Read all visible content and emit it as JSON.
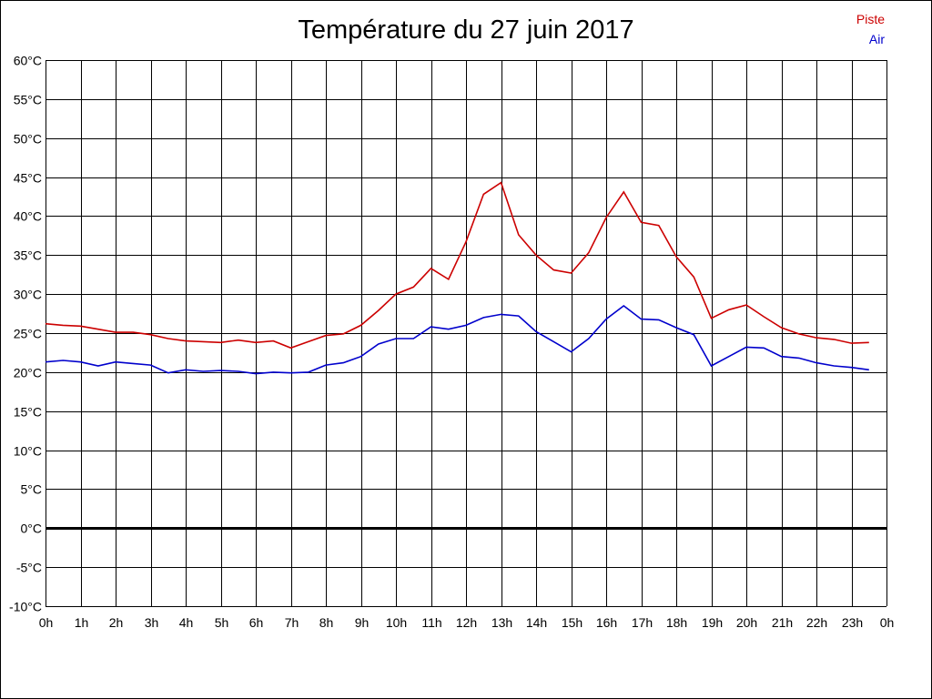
{
  "chart_data": {
    "type": "line",
    "title": "Température du 27 juin 2017",
    "xlabel": "",
    "ylabel": "",
    "ylim": [
      -10,
      60
    ],
    "xlim": [
      0,
      24
    ],
    "grid": true,
    "legend_position": "top-right",
    "y_ticks": [
      -10,
      -5,
      0,
      5,
      10,
      15,
      20,
      25,
      30,
      35,
      40,
      45,
      50,
      55,
      60
    ],
    "y_tick_labels": [
      "-10°C",
      "-5°C",
      "0°C",
      "5°C",
      "10°C",
      "15°C",
      "20°C",
      "25°C",
      "30°C",
      "35°C",
      "40°C",
      "45°C",
      "50°C",
      "55°C",
      "60°C"
    ],
    "x_tick_labels": [
      "0h",
      "1h",
      "2h",
      "3h",
      "4h",
      "5h",
      "6h",
      "7h",
      "8h",
      "9h",
      "10h",
      "11h",
      "12h",
      "13h",
      "14h",
      "15h",
      "16h",
      "17h",
      "18h",
      "19h",
      "20h",
      "21h",
      "22h",
      "23h",
      "0h"
    ],
    "series": [
      {
        "name": "Piste",
        "color": "#cc0000",
        "x": [
          0,
          0.5,
          1,
          1.5,
          2,
          2.5,
          3,
          3.5,
          4,
          4.5,
          5,
          5.5,
          6,
          6.5,
          7,
          7.5,
          8,
          8.5,
          9,
          9.5,
          10,
          10.5,
          11,
          11.5,
          12,
          12.5,
          13,
          13.5,
          14,
          14.5,
          15,
          15.5,
          16,
          16.5,
          17,
          17.5,
          18,
          18.5,
          19,
          19.5,
          20,
          20.5,
          21,
          21.5,
          22,
          22.5,
          23,
          23.5
        ],
        "values": [
          26.2,
          26.0,
          25.9,
          25.5,
          25.1,
          25.1,
          24.8,
          24.3,
          24.0,
          23.9,
          23.8,
          24.1,
          23.8,
          24.0,
          23.1,
          23.9,
          24.7,
          24.9,
          26.0,
          27.9,
          30.0,
          30.9,
          33.3,
          31.9,
          36.7,
          42.8,
          44.3,
          37.6,
          35.0,
          33.1,
          32.7,
          35.3,
          39.8,
          43.1,
          39.2,
          38.8,
          34.8,
          32.2,
          26.9,
          28.0,
          28.6,
          27.1,
          25.7,
          24.9,
          24.4,
          24.2,
          23.7,
          23.8
        ]
      },
      {
        "name": "Air",
        "color": "#0000cc",
        "x": [
          0,
          0.5,
          1,
          1.5,
          2,
          2.5,
          3,
          3.5,
          4,
          4.5,
          5,
          5.5,
          6,
          6.5,
          7,
          7.5,
          8,
          8.5,
          9,
          9.5,
          10,
          10.5,
          11,
          11.5,
          12,
          12.5,
          13,
          13.5,
          14,
          14.5,
          15,
          15.5,
          16,
          16.5,
          17,
          17.5,
          18,
          18.5,
          19,
          19.5,
          20,
          20.5,
          21,
          21.5,
          22,
          22.5,
          23,
          23.5
        ],
        "values": [
          21.3,
          21.5,
          21.3,
          20.8,
          21.3,
          21.1,
          20.9,
          19.9,
          20.3,
          20.1,
          20.2,
          20.1,
          19.8,
          20.0,
          19.9,
          20.0,
          20.9,
          21.2,
          22.0,
          23.6,
          24.3,
          24.3,
          25.8,
          25.5,
          26.0,
          27.0,
          27.4,
          27.2,
          25.2,
          23.9,
          22.6,
          24.3,
          26.8,
          28.5,
          26.8,
          26.7,
          25.7,
          24.8,
          20.8,
          22.0,
          23.2,
          23.1,
          22.0,
          21.8,
          21.2,
          20.8,
          20.6,
          20.3
        ]
      }
    ]
  }
}
